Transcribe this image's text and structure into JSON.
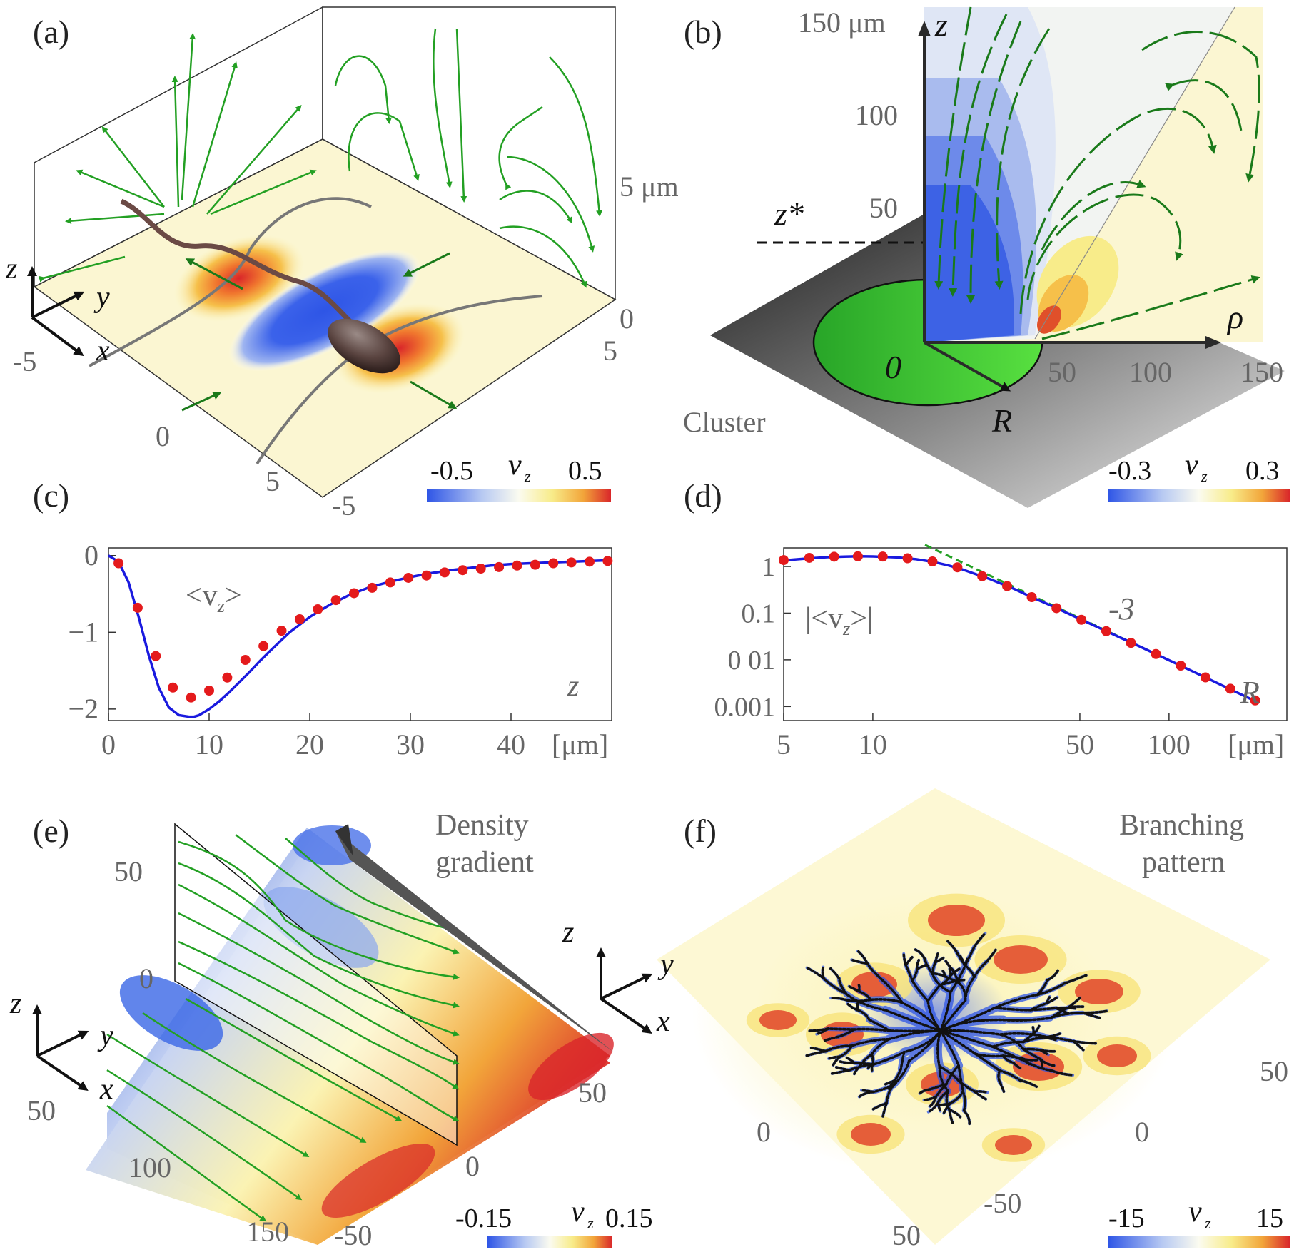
{
  "colors": {
    "blue": "#2e55e6",
    "lightblue": "#b7c9f2",
    "yellow": "#fbf3b3",
    "orange": "#f2a53a",
    "red": "#d9262a",
    "green_stream": "#23a023",
    "dark_green": "#1a7a1a",
    "curve_blue": "#1a1adf",
    "dot_red": "#e41a1c",
    "cluster_green": "#3cc83c",
    "gray_text": "#666666"
  },
  "panels": {
    "a": {
      "label": "(a)",
      "scale_label": "5 μm",
      "axis_z_zero": "0",
      "x_ticks": [
        "-5",
        "0",
        "5"
      ],
      "y_ticks": [
        "-5",
        "5"
      ],
      "axes": [
        "z",
        "y",
        "x"
      ],
      "colorbar": {
        "min": "-0.5",
        "max": "0.5",
        "label": "v",
        "sub": "z"
      }
    },
    "b": {
      "label": "(b)",
      "z_ticks": [
        "150 μm",
        "100",
        "50"
      ],
      "rho_ticks": [
        "50",
        "100",
        "150"
      ],
      "z_axis": "z",
      "rho_axis": "ρ",
      "zstar": "z*",
      "origin": "0",
      "radius": "R",
      "cluster": "Cluster",
      "colorbar": {
        "min": "-0.3",
        "max": "0.3",
        "label": "v",
        "sub": "z"
      }
    },
    "e": {
      "label": "(e)",
      "z_ticks": [
        "50",
        "0"
      ],
      "x_ticks": [
        "50",
        "100",
        "150"
      ],
      "y_ticks": [
        "50",
        "0",
        "-50"
      ],
      "axes": [
        "z",
        "y",
        "x"
      ],
      "annotation_1": "Density",
      "annotation_2": "gradient",
      "colorbar": {
        "min": "-0.15",
        "max": "0.15",
        "label": "v",
        "sub": "z"
      }
    },
    "f": {
      "label": "(f)",
      "ticks": [
        "50",
        "0",
        "0",
        "50",
        "-50"
      ],
      "axes": [
        "z",
        "y",
        "x"
      ],
      "annotation_1": "Branching",
      "annotation_2": "pattern",
      "colorbar": {
        "min": "-15",
        "max": "15",
        "label": "v",
        "sub": "z"
      }
    }
  },
  "chart_data": [
    {
      "panel": "c",
      "label": "(c)",
      "type": "line",
      "title": "",
      "curve_label": "<v",
      "curve_label_sub": "z",
      "curve_label_end": ">",
      "xlabel": "z",
      "xunit": "[μm]",
      "xlim": [
        0,
        50
      ],
      "ylim": [
        -2.15,
        0.1
      ],
      "x_ticks": [
        0,
        10,
        20,
        30,
        40
      ],
      "y_ticks": [
        0,
        -1,
        -2
      ],
      "y_tick_labels": [
        "0",
        "−1",
        "−2"
      ],
      "x_tick_labels": [
        "0",
        "10",
        "20",
        "30",
        "40"
      ],
      "series": [
        {
          "name": "theory",
          "style": "line",
          "x": [
            0,
            1,
            2,
            3,
            4,
            5,
            6,
            7,
            8,
            8.5,
            9,
            10,
            11,
            12,
            13,
            14,
            15,
            16,
            18,
            20,
            22,
            24,
            26,
            28,
            30,
            32,
            34,
            36,
            38,
            40,
            42,
            44,
            46,
            48,
            50
          ],
          "y": [
            0,
            -0.08,
            -0.35,
            -0.8,
            -1.3,
            -1.72,
            -1.98,
            -2.08,
            -2.1,
            -2.1,
            -2.08,
            -2.0,
            -1.9,
            -1.78,
            -1.65,
            -1.52,
            -1.38,
            -1.25,
            -1.0,
            -0.8,
            -0.64,
            -0.51,
            -0.41,
            -0.34,
            -0.28,
            -0.23,
            -0.19,
            -0.16,
            -0.13,
            -0.11,
            -0.1,
            -0.09,
            -0.08,
            -0.07,
            -0.06
          ]
        },
        {
          "name": "simulation",
          "style": "markers",
          "x": [
            1.0,
            2.9,
            4.7,
            6.4,
            8.2,
            10.0,
            11.8,
            13.6,
            15.4,
            17.2,
            19.0,
            20.8,
            22.6,
            24.4,
            26.2,
            28.0,
            29.8,
            31.6,
            33.4,
            35.2,
            37.0,
            38.8,
            40.6,
            42.4,
            44.2,
            46.0,
            47.8,
            49.6
          ],
          "y": [
            -0.1,
            -0.68,
            -1.31,
            -1.72,
            -1.85,
            -1.76,
            -1.59,
            -1.36,
            -1.18,
            -0.98,
            -0.83,
            -0.7,
            -0.58,
            -0.49,
            -0.42,
            -0.35,
            -0.29,
            -0.26,
            -0.22,
            -0.19,
            -0.17,
            -0.15,
            -0.13,
            -0.12,
            -0.1,
            -0.09,
            -0.08,
            -0.07
          ]
        }
      ]
    },
    {
      "panel": "d",
      "label": "(d)",
      "type": "line",
      "title": "",
      "curve_label": "|<v",
      "curve_label_sub": "z",
      "curve_label_end": ">|",
      "slope_label": "-3",
      "xlabel": "R",
      "xunit": "[μm]",
      "xscale": "log",
      "yscale": "log",
      "xlim": [
        5,
        250
      ],
      "ylim": [
        0.0005,
        2.5
      ],
      "x_ticks": [
        5,
        10,
        50,
        100
      ],
      "x_tick_labels": [
        "5",
        "10",
        "50",
        "100"
      ],
      "y_ticks": [
        1,
        0.1,
        0.01,
        0.001
      ],
      "y_tick_labels": [
        "1",
        "0.1",
        "0 01",
        "0.001"
      ],
      "series": [
        {
          "name": "theory",
          "style": "line",
          "x": [
            5,
            6,
            7,
            8,
            9,
            10,
            12,
            14,
            16,
            18,
            20,
            25,
            30,
            35,
            40,
            50,
            60,
            70,
            80,
            100,
            120,
            150,
            200
          ],
          "y": [
            1.35,
            1.48,
            1.58,
            1.63,
            1.65,
            1.64,
            1.57,
            1.43,
            1.25,
            1.05,
            0.87,
            0.53,
            0.33,
            0.21,
            0.145,
            0.075,
            0.044,
            0.028,
            0.019,
            0.0098,
            0.0057,
            0.0029,
            0.00122
          ]
        },
        {
          "name": "simulation",
          "style": "markers",
          "x": [
            5,
            6.1,
            7.4,
            8.9,
            10.8,
            13.1,
            15.9,
            19.3,
            23.4,
            28.4,
            34.4,
            41.7,
            50.6,
            61.4,
            74.4,
            90.3,
            109.5,
            132.8,
            161.1,
            195.4
          ],
          "y": [
            1.37,
            1.53,
            1.62,
            1.65,
            1.63,
            1.5,
            1.28,
            0.96,
            0.62,
            0.38,
            0.22,
            0.128,
            0.072,
            0.041,
            0.023,
            0.0133,
            0.0075,
            0.0042,
            0.0024,
            0.00135
          ]
        },
        {
          "name": "slope -3 guide",
          "style": "dashed",
          "x": [
            15,
            200
          ],
          "y": [
            2.9,
            0.00122
          ]
        }
      ]
    }
  ]
}
